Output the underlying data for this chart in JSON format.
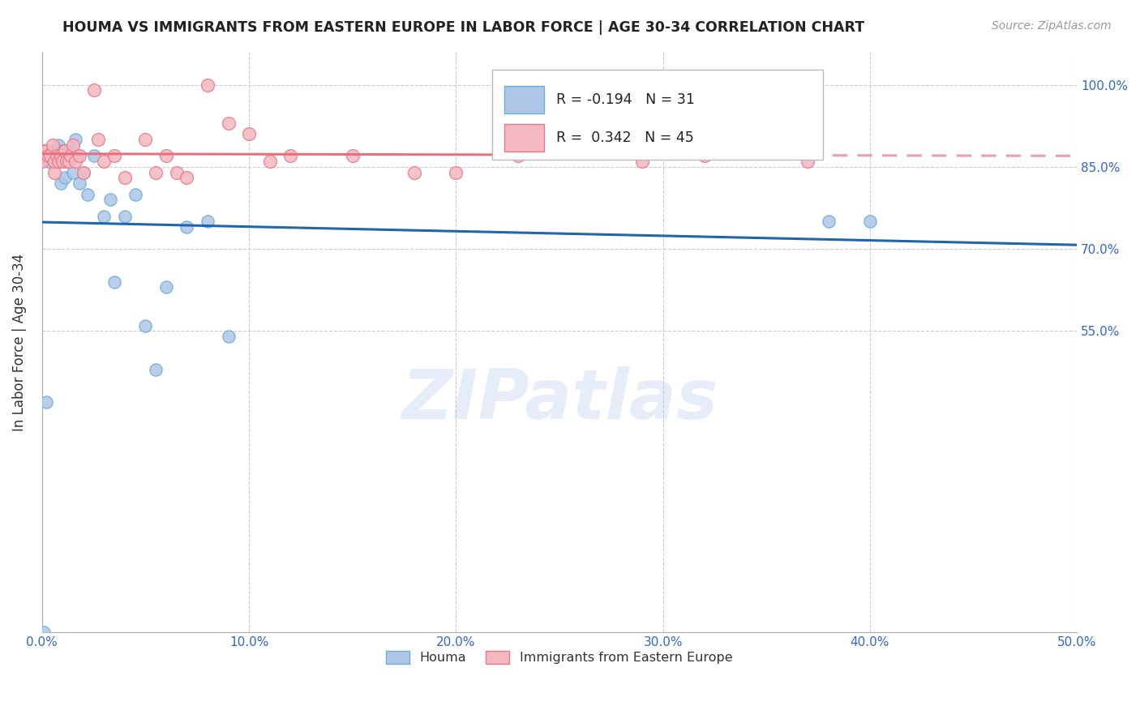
{
  "title": "HOUMA VS IMMIGRANTS FROM EASTERN EUROPE IN LABOR FORCE | AGE 30-34 CORRELATION CHART",
  "source": "Source: ZipAtlas.com",
  "ylabel": "In Labor Force | Age 30-34",
  "xmin": 0.0,
  "xmax": 0.5,
  "ymin": 0.0,
  "ymax": 1.06,
  "yticks": [
    0.55,
    0.7,
    0.85,
    1.0
  ],
  "ytick_labels": [
    "55.0%",
    "70.0%",
    "85.0%",
    "100.0%"
  ],
  "right_ytick_label_50": "50.0%",
  "xticks": [
    0.0,
    0.1,
    0.2,
    0.3,
    0.4,
    0.5
  ],
  "xtick_labels": [
    "0.0%",
    "10.0%",
    "20.0%",
    "30.0%",
    "40.0%",
    "50.0%"
  ],
  "houma_R": -0.194,
  "houma_N": 31,
  "eastern_europe_R": 0.342,
  "eastern_europe_N": 45,
  "houma_color": "#aec6e8",
  "houma_edge_color": "#6baed6",
  "eastern_europe_color": "#f4b8c1",
  "eastern_europe_edge_color": "#e87a8a",
  "houma_line_color": "#2166ac",
  "eastern_europe_line_color": "#e8707e",
  "eastern_europe_dash_color": "#e8a0aa",
  "watermark": "ZIPatlas",
  "legend_labels": [
    "Houma",
    "Immigrants from Eastern Europe"
  ],
  "houma_x": [
    0.001,
    0.002,
    0.003,
    0.005,
    0.007,
    0.008,
    0.009,
    0.01,
    0.011,
    0.013,
    0.014,
    0.015,
    0.016,
    0.017,
    0.018,
    0.02,
    0.022,
    0.025,
    0.03,
    0.033,
    0.035,
    0.04,
    0.045,
    0.05,
    0.055,
    0.06,
    0.07,
    0.08,
    0.09,
    0.38,
    0.4
  ],
  "houma_y": [
    0.0,
    0.42,
    0.86,
    0.87,
    0.88,
    0.89,
    0.82,
    0.88,
    0.83,
    0.87,
    0.88,
    0.84,
    0.9,
    0.87,
    0.82,
    0.84,
    0.8,
    0.87,
    0.76,
    0.79,
    0.64,
    0.76,
    0.8,
    0.56,
    0.48,
    0.63,
    0.74,
    0.75,
    0.54,
    0.75,
    0.75
  ],
  "eastern_x": [
    0.0,
    0.0,
    0.001,
    0.002,
    0.003,
    0.004,
    0.005,
    0.006,
    0.006,
    0.007,
    0.008,
    0.009,
    0.01,
    0.011,
    0.012,
    0.013,
    0.014,
    0.015,
    0.016,
    0.018,
    0.02,
    0.025,
    0.027,
    0.03,
    0.035,
    0.04,
    0.05,
    0.055,
    0.06,
    0.065,
    0.07,
    0.08,
    0.09,
    0.1,
    0.11,
    0.12,
    0.15,
    0.18,
    0.2,
    0.23,
    0.26,
    0.29,
    0.32,
    0.34,
    0.37
  ],
  "eastern_y": [
    0.87,
    0.86,
    0.88,
    0.88,
    0.87,
    0.87,
    0.89,
    0.84,
    0.86,
    0.87,
    0.86,
    0.87,
    0.86,
    0.88,
    0.86,
    0.86,
    0.87,
    0.89,
    0.86,
    0.87,
    0.84,
    0.99,
    0.9,
    0.86,
    0.87,
    0.83,
    0.9,
    0.84,
    0.87,
    0.84,
    0.83,
    1.0,
    0.93,
    0.91,
    0.86,
    0.87,
    0.87,
    0.84,
    0.84,
    0.87,
    0.9,
    0.86,
    0.87,
    0.88,
    0.86
  ]
}
